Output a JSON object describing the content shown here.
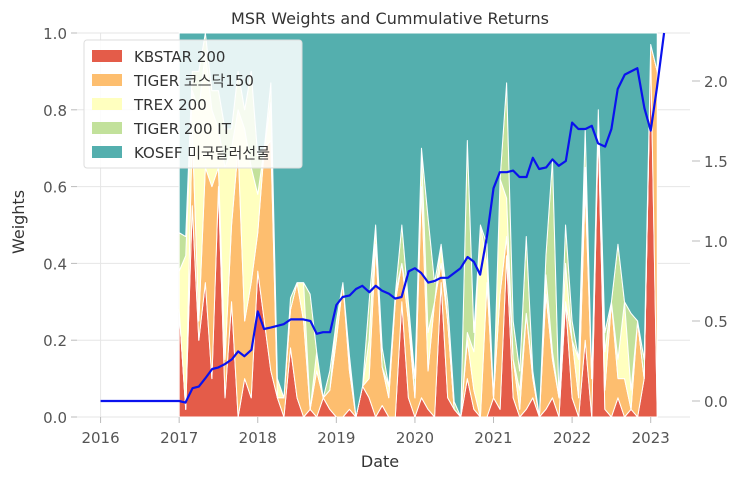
{
  "chart_data": {
    "type": "area",
    "title": "MSR Weights and Cummulative Returns",
    "xlabel": "Date",
    "ylabel": "Weights",
    "x_range": [
      2015.7,
      2023.5
    ],
    "x_ticks": [
      "2016",
      "2017",
      "2018",
      "2019",
      "2020",
      "2021",
      "2022",
      "2023"
    ],
    "ylim_left": [
      0,
      1.0
    ],
    "y_ticks_left": [
      "0.0",
      "0.2",
      "0.4",
      "0.6",
      "0.8",
      "1.0"
    ],
    "ylim_right": [
      -0.1,
      2.3
    ],
    "y_ticks_right": [
      "0.0",
      "0.5",
      "1.0",
      "1.5",
      "2.0"
    ],
    "legend_position": "top-left",
    "grid": true,
    "background": "#ffffff",
    "weights": {
      "start": 2017.0,
      "step": 0.0833333,
      "series": [
        {
          "name": "KBSTAR 200",
          "color": "#e45c49",
          "values": [
            0.28,
            0.02,
            0.55,
            0.2,
            0.35,
            0.1,
            0.6,
            0.05,
            0.3,
            0.0,
            0.1,
            0.05,
            0.38,
            0.25,
            0.12,
            0.05,
            0.0,
            0.18,
            0.05,
            0.0,
            0.02,
            0.0,
            0.05,
            0.02,
            0.0,
            0.0,
            0.02,
            0.0,
            0.08,
            0.05,
            0.0,
            0.03,
            0.0,
            0.0,
            0.3,
            0.05,
            0.0,
            0.05,
            0.02,
            0.0,
            0.35,
            0.05,
            0.02,
            0.0,
            0.1,
            0.02,
            0.0,
            0.0,
            0.05,
            0.02,
            0.42,
            0.05,
            0.0,
            0.02,
            0.05,
            0.0,
            0.02,
            0.05,
            0.0,
            0.3,
            0.05,
            0.0,
            0.2,
            0.0,
            0.75,
            0.02,
            0.0,
            0.05,
            0.0,
            0.02,
            0.0,
            0.1,
            0.95,
            0.0
          ]
        },
        {
          "name": "TIGER 코스닥150",
          "color": "#fdbe6f",
          "values": [
            0.0,
            0.0,
            0.2,
            0.05,
            0.3,
            0.5,
            0.05,
            0.1,
            0.2,
            0.7,
            0.15,
            0.3,
            0.1,
            0.45,
            0.6,
            0.0,
            0.05,
            0.1,
            0.3,
            0.25,
            0.0,
            0.12,
            0.0,
            0.05,
            0.2,
            0.35,
            0.1,
            0.0,
            0.0,
            0.05,
            0.45,
            0.1,
            0.05,
            0.3,
            0.1,
            0.2,
            0.05,
            0.55,
            0.1,
            0.3,
            0.05,
            0.2,
            0.0,
            0.0,
            0.1,
            0.05,
            0.0,
            0.35,
            0.0,
            0.3,
            0.05,
            0.1,
            0.02,
            0.25,
            0.05,
            0.0,
            0.3,
            0.1,
            0.05,
            0.0,
            0.15,
            0.05,
            0.4,
            0.1,
            0.0,
            0.05,
            0.3,
            0.05,
            0.1,
            0.0,
            0.25,
            0.0,
            0.02,
            0.9
          ]
        },
        {
          "name": "TREX 200",
          "color": "#ffffbf",
          "values": [
            0.1,
            0.4,
            0.1,
            0.55,
            0.3,
            0.2,
            0.1,
            0.5,
            0.2,
            0.1,
            0.5,
            0.3,
            0.1,
            0.0,
            0.1,
            0.05,
            0.0,
            0.0,
            0.0,
            0.1,
            0.0,
            0.05,
            0.0,
            0.0,
            0.05,
            0.0,
            0.02,
            0.0,
            0.0,
            0.1,
            0.05,
            0.0,
            0.03,
            0.02,
            0.0,
            0.05,
            0.0,
            0.1,
            0.1,
            0.0,
            0.05,
            0.0,
            0.0,
            0.0,
            0.02,
            0.1,
            0.5,
            0.05,
            0.0,
            0.3,
            0.1,
            0.0,
            0.05,
            0.0,
            0.02,
            0.0,
            0.05,
            0.02,
            0.0,
            0.1,
            0.0,
            0.1,
            0.05,
            0.0,
            0.0,
            0.1,
            0.0,
            0.05,
            0.2,
            0.05,
            0.0,
            0.0,
            0.0,
            0.0
          ]
        },
        {
          "name": "TIGER 200 IT",
          "color": "#c2e19b",
          "values": [
            0.1,
            0.05,
            0.05,
            0.1,
            0.05,
            0.05,
            0.1,
            0.1,
            0.05,
            0.1,
            0.05,
            0.25,
            0.1,
            0.0,
            0.05,
            0.0,
            0.0,
            0.03,
            0.0,
            0.0,
            0.3,
            0.0,
            0.0,
            0.05,
            0.0,
            0.0,
            0.02,
            0.0,
            0.0,
            0.1,
            0.0,
            0.05,
            0.0,
            0.0,
            0.1,
            0.0,
            0.05,
            0.0,
            0.3,
            0.05,
            0.0,
            0.05,
            0.02,
            0.0,
            0.5,
            0.05,
            0.0,
            0.05,
            0.0,
            0.0,
            0.3,
            0.1,
            0.05,
            0.2,
            0.0,
            0.0,
            0.05,
            0.5,
            0.0,
            0.1,
            0.05,
            0.0,
            0.1,
            0.0,
            0.05,
            0.05,
            0.0,
            0.3,
            0.0,
            0.2,
            0.0,
            0.05,
            0.0,
            0.0
          ]
        }
      ],
      "remainder_series": {
        "name": "KOSEF 미국달러선물",
        "color": "#54afae"
      }
    },
    "cumulative_returns": {
      "name": "Cumulative Returns",
      "color": "#0a12ee",
      "x": [
        2016.0,
        2016.92,
        2017.0,
        2017.08,
        2017.17,
        2017.25,
        2017.33,
        2017.42,
        2017.5,
        2017.58,
        2017.67,
        2017.75,
        2017.83,
        2017.92,
        2018.0,
        2018.08,
        2018.17,
        2018.25,
        2018.33,
        2018.42,
        2018.5,
        2018.58,
        2018.67,
        2018.75,
        2018.83,
        2018.92,
        2019.0,
        2019.08,
        2019.17,
        2019.25,
        2019.33,
        2019.42,
        2019.5,
        2019.58,
        2019.67,
        2019.75,
        2019.83,
        2019.92,
        2020.0,
        2020.08,
        2020.17,
        2020.25,
        2020.33,
        2020.42,
        2020.5,
        2020.58,
        2020.67,
        2020.75,
        2020.83,
        2020.92,
        2021.0,
        2021.08,
        2021.17,
        2021.25,
        2021.33,
        2021.42,
        2021.5,
        2021.58,
        2021.67,
        2021.75,
        2021.83,
        2021.92,
        2022.0,
        2022.08,
        2022.17,
        2022.25,
        2022.33,
        2022.42,
        2022.5,
        2022.58,
        2022.67,
        2022.75,
        2022.83,
        2022.92,
        2023.0,
        2023.08,
        2023.17
      ],
      "y": [
        0.0,
        0.0,
        0.0,
        -0.01,
        0.08,
        0.09,
        0.14,
        0.2,
        0.21,
        0.23,
        0.26,
        0.31,
        0.28,
        0.32,
        0.56,
        0.45,
        0.46,
        0.47,
        0.48,
        0.51,
        0.51,
        0.51,
        0.5,
        0.42,
        0.43,
        0.43,
        0.6,
        0.65,
        0.66,
        0.7,
        0.72,
        0.68,
        0.72,
        0.69,
        0.67,
        0.64,
        0.65,
        0.81,
        0.83,
        0.8,
        0.74,
        0.75,
        0.77,
        0.77,
        0.8,
        0.83,
        0.9,
        0.87,
        0.79,
        1.04,
        1.33,
        1.43,
        1.43,
        1.44,
        1.4,
        1.4,
        1.52,
        1.45,
        1.46,
        1.51,
        1.47,
        1.5,
        1.74,
        1.7,
        1.7,
        1.72,
        1.61,
        1.59,
        1.7,
        1.95,
        2.04,
        2.06,
        2.08,
        1.83,
        1.69,
        1.96,
        2.3
      ]
    }
  }
}
